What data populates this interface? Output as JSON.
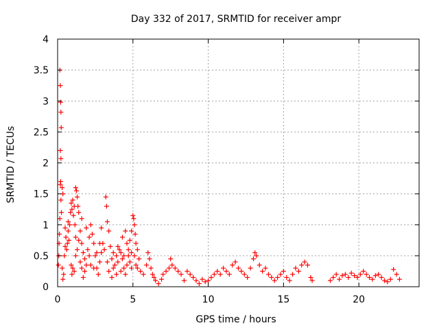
{
  "chart_data": {
    "type": "scatter",
    "title": "Day 332 of 2017, SRMTID for receiver ampr",
    "xlabel": "GPS time / hours",
    "ylabel": "SRMTID / TECUs",
    "xlim": [
      0,
      24
    ],
    "ylim": [
      0,
      4
    ],
    "xticks": [
      {
        "value": 0,
        "label": "0"
      },
      {
        "value": 5,
        "label": "5"
      },
      {
        "value": 10,
        "label": "10"
      },
      {
        "value": 15,
        "label": "15"
      },
      {
        "value": 20,
        "label": "20"
      }
    ],
    "yticks": [
      {
        "value": 0,
        "label": "0"
      },
      {
        "value": 0.5,
        "label": "0.5"
      },
      {
        "value": 1,
        "label": "1"
      },
      {
        "value": 1.5,
        "label": "1.5"
      },
      {
        "value": 2,
        "label": "2"
      },
      {
        "value": 2.5,
        "label": "2.5"
      },
      {
        "value": 3,
        "label": "3"
      },
      {
        "value": 3.5,
        "label": "3.5"
      },
      {
        "value": 4,
        "label": "4"
      }
    ],
    "grid": true,
    "marker": "+",
    "color": "#ff0000",
    "series": [
      {
        "name": "SRMTID",
        "points": [
          [
            0.05,
            0.35
          ],
          [
            0.08,
            0.5
          ],
          [
            0.1,
            0.7
          ],
          [
            0.12,
            0.85
          ],
          [
            0.15,
            1.1
          ],
          [
            0.18,
            1.65
          ],
          [
            0.2,
            1.7
          ],
          [
            0.22,
            1.4
          ],
          [
            0.25,
            1.2
          ],
          [
            0.15,
            3.5
          ],
          [
            0.18,
            3.25
          ],
          [
            0.2,
            2.98
          ],
          [
            0.22,
            2.82
          ],
          [
            0.24,
            2.57
          ],
          [
            0.18,
            2.2
          ],
          [
            0.22,
            2.07
          ],
          [
            0.3,
            1.6
          ],
          [
            0.35,
            1.5
          ],
          [
            0.3,
            0.3
          ],
          [
            0.35,
            0.12
          ],
          [
            0.4,
            0.2
          ],
          [
            0.45,
            0.5
          ],
          [
            0.5,
            0.65
          ],
          [
            0.55,
            0.8
          ],
          [
            0.6,
            0.6
          ],
          [
            0.65,
            0.7
          ],
          [
            0.7,
            0.9
          ],
          [
            0.75,
            0.75
          ],
          [
            0.8,
            1.0
          ],
          [
            0.85,
            1.2
          ],
          [
            0.9,
            1.35
          ],
          [
            0.95,
            1.25
          ],
          [
            1.0,
            1.4
          ],
          [
            1.05,
            1.15
          ],
          [
            1.1,
            1.3
          ],
          [
            1.15,
            1.0
          ],
          [
            1.2,
            1.6
          ],
          [
            1.25,
            1.55
          ],
          [
            1.3,
            1.45
          ],
          [
            1.35,
            1.3
          ],
          [
            0.9,
            0.35
          ],
          [
            0.95,
            0.2
          ],
          [
            1.0,
            0.3
          ],
          [
            1.1,
            0.25
          ],
          [
            1.2,
            0.5
          ],
          [
            1.3,
            0.6
          ],
          [
            1.4,
            0.75
          ],
          [
            1.5,
            0.9
          ],
          [
            1.6,
            0.7
          ],
          [
            1.7,
            0.55
          ],
          [
            1.8,
            0.45
          ],
          [
            1.9,
            0.35
          ],
          [
            2.0,
            0.6
          ],
          [
            2.1,
            0.8
          ],
          [
            2.2,
            1.0
          ],
          [
            2.3,
            0.85
          ],
          [
            2.4,
            0.7
          ],
          [
            2.5,
            0.5
          ],
          [
            2.6,
            0.3
          ],
          [
            2.7,
            0.2
          ],
          [
            2.8,
            0.4
          ],
          [
            2.9,
            0.55
          ],
          [
            3.0,
            0.7
          ],
          [
            3.1,
            0.6
          ],
          [
            3.2,
            1.45
          ],
          [
            3.25,
            1.3
          ],
          [
            3.3,
            1.05
          ],
          [
            3.4,
            0.9
          ],
          [
            3.5,
            0.65
          ],
          [
            3.6,
            0.45
          ],
          [
            3.7,
            0.3
          ],
          [
            3.8,
            0.35
          ],
          [
            3.9,
            0.5
          ],
          [
            4.0,
            0.4
          ],
          [
            4.1,
            0.6
          ],
          [
            4.2,
            0.55
          ],
          [
            4.3,
            0.45
          ],
          [
            4.4,
            0.3
          ],
          [
            4.5,
            0.2
          ],
          [
            4.6,
            0.35
          ],
          [
            4.7,
            0.5
          ],
          [
            4.8,
            0.75
          ],
          [
            4.9,
            0.9
          ],
          [
            5.0,
            1.15
          ],
          [
            5.05,
            1.1
          ],
          [
            5.1,
            1.0
          ],
          [
            5.15,
            0.85
          ],
          [
            5.2,
            0.7
          ],
          [
            5.3,
            0.6
          ],
          [
            5.4,
            0.45
          ],
          [
            1.5,
            0.4
          ],
          [
            1.6,
            0.3
          ],
          [
            1.7,
            0.15
          ],
          [
            1.8,
            0.25
          ],
          [
            2.2,
            0.35
          ],
          [
            2.6,
            0.55
          ],
          [
            2.8,
            0.7
          ],
          [
            3.4,
            0.25
          ],
          [
            3.6,
            0.15
          ],
          [
            3.9,
            0.2
          ],
          [
            4.2,
            0.25
          ],
          [
            4.4,
            0.5
          ],
          [
            4.6,
            0.7
          ],
          [
            4.7,
            0.6
          ],
          [
            4.8,
            0.4
          ],
          [
            4.9,
            0.3
          ],
          [
            5.1,
            0.5
          ],
          [
            5.3,
            0.3
          ],
          [
            0.5,
            0.95
          ],
          [
            0.7,
            1.05
          ],
          [
            1.2,
            0.8
          ],
          [
            1.4,
            1.2
          ],
          [
            1.6,
            1.1
          ],
          [
            1.9,
            0.95
          ],
          [
            2.1,
            0.5
          ],
          [
            2.4,
            0.3
          ],
          [
            2.9,
            0.95
          ],
          [
            3.3,
            0.4
          ],
          [
            3.7,
            0.55
          ],
          [
            4.0,
            0.65
          ],
          [
            4.3,
            0.8
          ],
          [
            4.5,
            0.9
          ],
          [
            4.9,
            0.55
          ],
          [
            5.2,
            0.35
          ],
          [
            5.5,
            0.25
          ],
          [
            5.7,
            0.2
          ],
          [
            5.9,
            0.35
          ],
          [
            6.0,
            0.55
          ],
          [
            6.1,
            0.45
          ],
          [
            6.2,
            0.3
          ],
          [
            6.3,
            0.2
          ],
          [
            6.4,
            0.15
          ],
          [
            6.5,
            0.1
          ],
          [
            6.7,
            0.05
          ],
          [
            6.9,
            0.12
          ],
          [
            7.0,
            0.2
          ],
          [
            7.2,
            0.25
          ],
          [
            7.4,
            0.3
          ],
          [
            7.5,
            0.45
          ],
          [
            7.6,
            0.35
          ],
          [
            7.8,
            0.3
          ],
          [
            8.0,
            0.25
          ],
          [
            8.2,
            0.2
          ],
          [
            8.4,
            0.1
          ],
          [
            8.6,
            0.25
          ],
          [
            8.8,
            0.2
          ],
          [
            9.0,
            0.15
          ],
          [
            9.2,
            0.1
          ],
          [
            9.4,
            0.05
          ],
          [
            9.6,
            0.12
          ],
          [
            9.8,
            0.08
          ],
          [
            10.0,
            0.1
          ],
          [
            10.2,
            0.15
          ],
          [
            10.4,
            0.2
          ],
          [
            10.6,
            0.25
          ],
          [
            10.8,
            0.2
          ],
          [
            11.0,
            0.3
          ],
          [
            11.2,
            0.25
          ],
          [
            11.4,
            0.2
          ],
          [
            11.6,
            0.35
          ],
          [
            11.8,
            0.4
          ],
          [
            12.0,
            0.3
          ],
          [
            12.2,
            0.25
          ],
          [
            12.4,
            0.2
          ],
          [
            12.6,
            0.15
          ],
          [
            12.8,
            0.3
          ],
          [
            13.0,
            0.45
          ],
          [
            13.1,
            0.55
          ],
          [
            13.2,
            0.5
          ],
          [
            13.4,
            0.35
          ],
          [
            13.6,
            0.25
          ],
          [
            13.8,
            0.3
          ],
          [
            14.0,
            0.2
          ],
          [
            14.2,
            0.15
          ],
          [
            14.4,
            0.1
          ],
          [
            14.6,
            0.15
          ],
          [
            14.8,
            0.2
          ],
          [
            15.0,
            0.25
          ],
          [
            15.2,
            0.15
          ],
          [
            15.4,
            0.1
          ],
          [
            15.6,
            0.2
          ],
          [
            15.8,
            0.3
          ],
          [
            16.0,
            0.25
          ],
          [
            16.2,
            0.35
          ],
          [
            16.4,
            0.4
          ],
          [
            16.6,
            0.35
          ],
          [
            16.8,
            0.15
          ],
          [
            16.9,
            0.1
          ],
          [
            18.1,
            0.1
          ],
          [
            18.3,
            0.15
          ],
          [
            18.5,
            0.2
          ],
          [
            18.7,
            0.12
          ],
          [
            18.9,
            0.18
          ],
          [
            19.1,
            0.2
          ],
          [
            19.3,
            0.15
          ],
          [
            19.5,
            0.22
          ],
          [
            19.7,
            0.18
          ],
          [
            19.9,
            0.15
          ],
          [
            20.1,
            0.2
          ],
          [
            20.3,
            0.25
          ],
          [
            20.5,
            0.2
          ],
          [
            20.7,
            0.15
          ],
          [
            20.9,
            0.12
          ],
          [
            21.1,
            0.18
          ],
          [
            21.3,
            0.2
          ],
          [
            21.5,
            0.15
          ],
          [
            21.7,
            0.1
          ],
          [
            21.9,
            0.08
          ],
          [
            22.1,
            0.12
          ],
          [
            22.3,
            0.28
          ],
          [
            22.5,
            0.2
          ],
          [
            22.7,
            0.12
          ]
        ]
      }
    ]
  }
}
